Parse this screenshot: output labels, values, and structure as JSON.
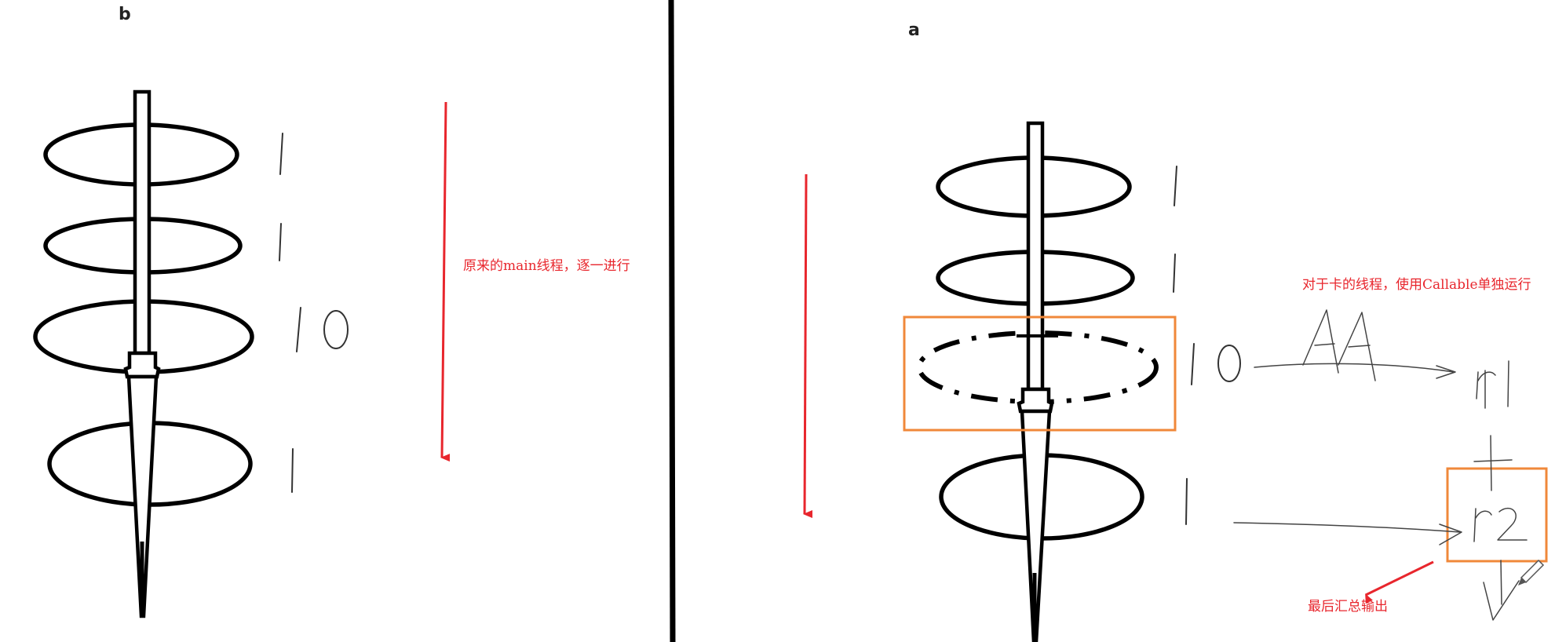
{
  "panel_b": {
    "label": "b",
    "stage_labels": [
      "1",
      "1",
      "10",
      "1"
    ],
    "arrow_note": "原来的main线程，逐一进行"
  },
  "panel_a": {
    "label": "a",
    "stage_labels": [
      "1",
      "1",
      "10",
      "1"
    ],
    "thread_label": "AA",
    "result_labels": [
      "r1",
      "+",
      "r2"
    ],
    "callable_note": "对于卡的线程，使用Callable单独运行",
    "summary_note": "最后汇总输出"
  },
  "colors": {
    "arrow_red": "#e8262d",
    "highlight_orange": "#f0883a",
    "ink": "#000000"
  }
}
